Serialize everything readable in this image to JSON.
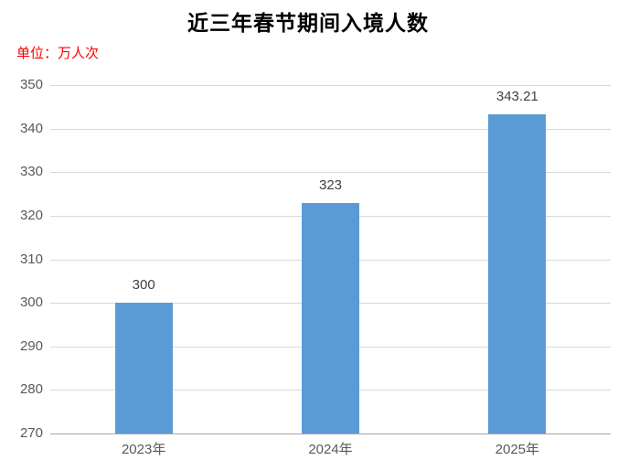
{
  "chart_data": {
    "type": "bar",
    "title": "近三年春节期间入境人数",
    "unit_label": "单位：万人次",
    "categories": [
      "2023年",
      "2024年",
      "2025年"
    ],
    "values": [
      300,
      323,
      343.21
    ],
    "value_labels": [
      "300",
      "323",
      "343.21"
    ],
    "xlabel": "",
    "ylabel": "",
    "ylim": [
      270,
      350
    ],
    "yticks": [
      270,
      280,
      290,
      300,
      310,
      320,
      330,
      340,
      350
    ],
    "grid": true,
    "legend": false,
    "colors": {
      "bar": "#5B9BD5",
      "gridline": "#D9D9D9",
      "axis_line": "#A6A6A6",
      "tick_label": "#595959",
      "value_label": "#404040",
      "title": "#000000",
      "unit_label": "#FF0000"
    }
  }
}
